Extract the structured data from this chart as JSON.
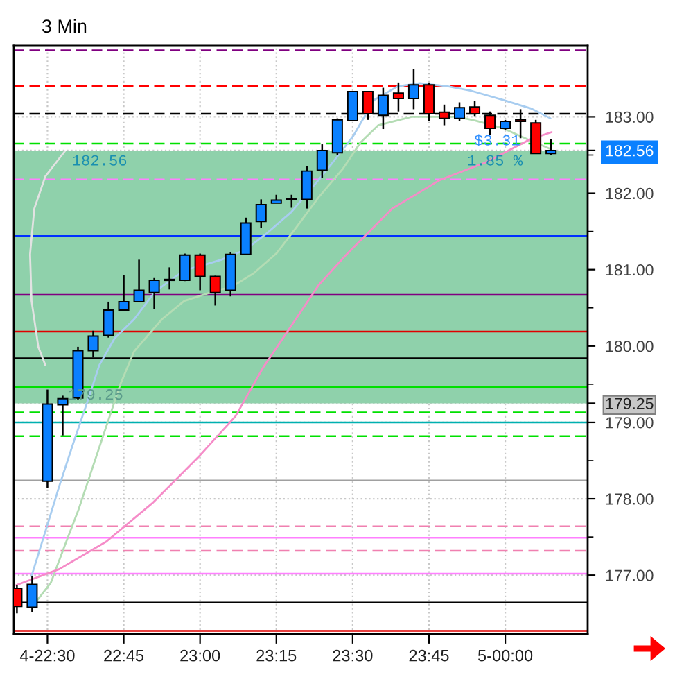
{
  "chart_data": {
    "type": "candlestick",
    "title": "3 Min",
    "x": [
      22.4,
      22.45,
      22.5,
      22.55,
      22.6,
      22.65,
      22.7,
      22.75,
      22.8,
      22.85,
      22.9,
      22.95,
      23.0,
      23.05,
      23.1,
      23.15,
      23.2,
      23.25,
      23.3,
      23.35,
      23.4,
      23.45,
      23.5,
      23.55,
      23.6,
      23.65,
      23.7,
      23.75,
      23.8,
      23.85,
      23.9,
      23.95,
      24.0,
      24.05,
      24.1,
      24.15
    ],
    "ohlc": [
      [
        176.83,
        176.87,
        176.5,
        176.59
      ],
      [
        176.58,
        176.99,
        176.52,
        176.88
      ],
      [
        178.23,
        179.43,
        178.14,
        179.24
      ],
      [
        179.23,
        179.35,
        178.83,
        179.31
      ],
      [
        179.32,
        179.99,
        179.3,
        179.94
      ],
      [
        179.94,
        180.2,
        179.85,
        180.13
      ],
      [
        180.14,
        180.58,
        180.11,
        180.47
      ],
      [
        180.47,
        180.93,
        180.46,
        180.58
      ],
      [
        180.58,
        181.13,
        180.57,
        180.73
      ],
      [
        180.7,
        180.89,
        180.48,
        180.86
      ],
      [
        180.86,
        181.03,
        180.74,
        180.87
      ],
      [
        180.86,
        181.21,
        180.85,
        181.19
      ],
      [
        181.19,
        181.21,
        180.73,
        180.91
      ],
      [
        180.91,
        180.92,
        180.53,
        180.7
      ],
      [
        180.73,
        181.23,
        180.65,
        181.2
      ],
      [
        181.2,
        181.68,
        181.2,
        181.61
      ],
      [
        181.63,
        181.92,
        181.55,
        181.85
      ],
      [
        181.87,
        181.98,
        181.87,
        181.91
      ],
      [
        181.92,
        181.98,
        181.81,
        181.93
      ],
      [
        181.92,
        182.35,
        181.8,
        182.29
      ],
      [
        182.3,
        182.64,
        182.2,
        182.56
      ],
      [
        182.53,
        182.98,
        182.5,
        182.96
      ],
      [
        182.95,
        183.34,
        182.94,
        183.33
      ],
      [
        183.33,
        183.34,
        182.96,
        183.04
      ],
      [
        183.02,
        183.38,
        182.84,
        183.28
      ],
      [
        183.31,
        183.45,
        183.07,
        183.24
      ],
      [
        183.24,
        183.63,
        183.1,
        183.42
      ],
      [
        183.42,
        183.44,
        182.94,
        183.04
      ],
      [
        183.06,
        183.16,
        182.89,
        182.98
      ],
      [
        182.98,
        183.19,
        182.94,
        183.12
      ],
      [
        183.13,
        183.21,
        183.01,
        183.04
      ],
      [
        183.02,
        183.07,
        182.76,
        182.85
      ],
      [
        182.85,
        182.96,
        182.83,
        182.94
      ],
      [
        182.96,
        183.1,
        182.72,
        182.94
      ],
      [
        182.92,
        182.96,
        182.52,
        182.52
      ],
      [
        182.52,
        182.71,
        182.5,
        182.56
      ]
    ],
    "colors": [
      "#ff0000",
      "#0a80ff",
      "#0a80ff",
      "#0a80ff",
      "#0a80ff",
      "#0a80ff",
      "#0a80ff",
      "#0a80ff",
      "#0a80ff",
      "#0a80ff",
      "#0a80ff",
      "#0a80ff",
      "#ff0000",
      "#ff0000",
      "#0a80ff",
      "#0a80ff",
      "#0a80ff",
      "#0a80ff",
      "#0a80ff",
      "#0a80ff",
      "#0a80ff",
      "#0a80ff",
      "#0a80ff",
      "#ff0000",
      "#0a80ff",
      "#ff0000",
      "#0a80ff",
      "#ff0000",
      "#ff0000",
      "#0a80ff",
      "#ff0000",
      "#ff0000",
      "#0a80ff",
      "#ff0000",
      "#ff0000",
      "#0a80ff"
    ],
    "series": [
      {
        "type": "line",
        "color": "#a8cdf0",
        "x": [
          22.448,
          22.493,
          22.539,
          22.584,
          22.63,
          22.67,
          22.72,
          22.784,
          22.852,
          22.948,
          23.011,
          23.07,
          23.148,
          23.22,
          23.298,
          23.375,
          23.434,
          23.502,
          23.57,
          23.648,
          23.72,
          23.811,
          23.889,
          23.993,
          24.084,
          24.148
        ],
        "values": [
          176.99,
          177.57,
          178.17,
          178.72,
          179.26,
          179.75,
          180.1,
          180.35,
          180.71,
          180.99,
          181.06,
          181.13,
          181.26,
          181.48,
          181.75,
          182.11,
          182.4,
          182.75,
          183.22,
          183.4,
          183.44,
          183.4,
          183.34,
          183.22,
          183.11,
          182.98
        ]
      },
      {
        "type": "line",
        "color": "#b4dcb4",
        "x": [
          22.466,
          22.511,
          22.557,
          22.602,
          22.648,
          22.693,
          22.739,
          22.784,
          22.875,
          22.948,
          23.057,
          23.102,
          23.175,
          23.252,
          23.311,
          23.389,
          23.466,
          23.525,
          23.584,
          23.693,
          23.843,
          23.902,
          23.993,
          24.07,
          24.148
        ],
        "values": [
          176.67,
          176.9,
          177.39,
          177.86,
          178.41,
          178.95,
          179.5,
          179.93,
          180.35,
          180.59,
          180.73,
          180.77,
          180.95,
          181.22,
          181.53,
          181.95,
          182.31,
          182.66,
          182.89,
          183.0,
          183.0,
          182.95,
          182.85,
          182.71,
          182.58
        ]
      },
      {
        "type": "line",
        "color": "#f58cc8",
        "x": [
          22.398,
          22.539,
          22.693,
          22.843,
          22.993,
          23.116,
          23.207,
          23.298,
          23.389,
          23.48,
          23.63,
          23.784,
          23.934,
          24.084,
          24.152
        ],
        "values": [
          176.87,
          177.08,
          177.44,
          177.94,
          178.54,
          179.08,
          179.72,
          180.26,
          180.8,
          181.2,
          181.8,
          182.17,
          182.4,
          182.71,
          182.8
        ]
      },
      {
        "type": "line",
        "color": "#e2e2e2",
        "x": [
          22.557,
          22.493,
          22.457,
          22.443,
          22.448,
          22.47,
          22.493
        ],
        "values": [
          182.55,
          182.22,
          181.8,
          181.2,
          180.59,
          179.99,
          179.75
        ]
      }
    ],
    "ref_lines": [
      {
        "axis": "y",
        "value": 183.87,
        "color": "#800080",
        "line_style": "dashed"
      },
      {
        "axis": "y",
        "value": 183.4,
        "color": "#ff0000",
        "line_style": "dashed"
      },
      {
        "axis": "y",
        "value": 183.04,
        "color": "#000000",
        "line_style": "dashed"
      },
      {
        "axis": "y",
        "value": 182.65,
        "color": "#00e000",
        "line_style": "dashed"
      },
      {
        "axis": "y",
        "value": 182.18,
        "color": "#ff80ff",
        "line_style": "dashed"
      },
      {
        "axis": "y",
        "value": 181.44,
        "color": "#0030ff",
        "line_style": "solid"
      },
      {
        "axis": "y",
        "value": 180.67,
        "color": "#800080",
        "line_style": "solid"
      },
      {
        "axis": "y",
        "value": 180.19,
        "color": "#e00000",
        "line_style": "solid"
      },
      {
        "axis": "y",
        "value": 179.84,
        "color": "#000000",
        "line_style": "solid"
      },
      {
        "axis": "y",
        "value": 179.46,
        "color": "#00e000",
        "line_style": "solid"
      },
      {
        "axis": "y",
        "value": 179.13,
        "color": "#00e000",
        "line_style": "dashed"
      },
      {
        "axis": "y",
        "value": 179.0,
        "color": "#00b0b0",
        "line_style": "solid"
      },
      {
        "axis": "y",
        "value": 178.82,
        "color": "#00e000",
        "line_style": "dashed"
      },
      {
        "axis": "y",
        "value": 178.24,
        "color": "#a0a0a0",
        "line_style": "solid"
      },
      {
        "axis": "y",
        "value": 177.64,
        "color": "#f080b0",
        "line_style": "dashed"
      },
      {
        "axis": "y",
        "value": 177.49,
        "color": "#ff80ff",
        "line_style": "solid"
      },
      {
        "axis": "y",
        "value": 177.32,
        "color": "#f080b0",
        "line_style": "dashed"
      },
      {
        "axis": "y",
        "value": 177.02,
        "color": "#ff80ff",
        "line_style": "solid"
      },
      {
        "axis": "y",
        "value": 176.64,
        "color": "#000000",
        "line_style": "solid"
      },
      {
        "axis": "y",
        "value": 176.27,
        "color": "#e00000",
        "line_style": "solid"
      }
    ],
    "bands": [
      {
        "axis": "y",
        "from": 179.25,
        "to": 182.56,
        "color": "#8fd1ab"
      }
    ],
    "annotations": [
      "182.56",
      "179.25",
      "$3.31",
      "1.85 %"
    ],
    "xlim": [
      22.39,
      24.27
    ],
    "xticks": [
      {
        "value": 22.5,
        "label": "4-22:30"
      },
      {
        "value": 22.75,
        "label": "22:45"
      },
      {
        "value": 23.0,
        "label": "23:00"
      },
      {
        "value": 23.25,
        "label": "23:15"
      },
      {
        "value": 23.5,
        "label": "23:30"
      },
      {
        "value": 23.75,
        "label": "23:45"
      },
      {
        "value": 24.0,
        "label": "5-00:00"
      }
    ],
    "ylim": [
      176.23,
      183.93
    ],
    "yticks": [
      {
        "value": 177,
        "label": "177.00"
      },
      {
        "value": 178,
        "label": "178.00"
      },
      {
        "value": 179,
        "label": "179.00"
      },
      {
        "value": 179.25,
        "label": "179.25"
      },
      {
        "value": 180,
        "label": "180.00"
      },
      {
        "value": 181,
        "label": "181.00"
      },
      {
        "value": 182,
        "label": "182.00"
      },
      {
        "value": 182.56,
        "label": "182.56"
      },
      {
        "value": 183,
        "label": "183.00"
      }
    ],
    "grid": true
  }
}
